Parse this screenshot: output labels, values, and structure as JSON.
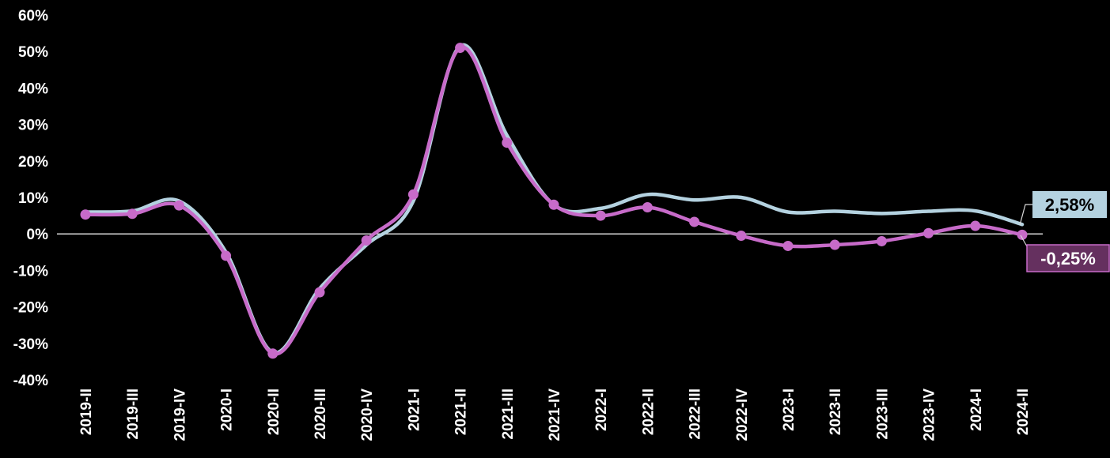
{
  "chart_data": {
    "type": "line",
    "categories": [
      "2019-II",
      "2019-III",
      "2019-IV",
      "2020-I",
      "2020-II",
      "2020-III",
      "2020-IV",
      "2021-I",
      "2021-II",
      "2021-III",
      "2021-IV",
      "2022-I",
      "2022-II",
      "2022-III",
      "2022-IV",
      "2023-I",
      "2023-II",
      "2023-III",
      "2023-IV",
      "2024-I",
      "2024-II"
    ],
    "series": [
      {
        "color": "#b4d2e0",
        "values": [
          6.0,
          6.3,
          9.0,
          -5.0,
          -32.5,
          -15.0,
          -3.0,
          9.0,
          51.5,
          27.0,
          8.0,
          7.0,
          10.8,
          9.3,
          10.0,
          6.0,
          6.2,
          5.6,
          6.2,
          6.3,
          2.58
        ],
        "end_label": "2,58%",
        "label_bg": "#b4d2e0",
        "label_color": "#000000",
        "markers": false
      },
      {
        "color": "#c76bc9",
        "values": [
          5.3,
          5.5,
          7.8,
          -6.0,
          -32.8,
          -16.0,
          -1.8,
          10.8,
          51.0,
          25.0,
          8.0,
          5.0,
          7.3,
          3.3,
          -0.5,
          -3.3,
          -3.0,
          -2.0,
          0.2,
          2.2,
          -0.25
        ],
        "end_label": "-0,25%",
        "label_bg": "#65305f",
        "label_color": "#ffffff",
        "markers": true
      }
    ],
    "y_ticks": [
      "60%",
      "50%",
      "40%",
      "30%",
      "20%",
      "10%",
      "0%",
      "-10%",
      "-20%",
      "-30%",
      "-40%"
    ],
    "ylim": [
      -40,
      60
    ],
    "zero_line": true,
    "grid": false,
    "legend": "none",
    "background": "#000000",
    "text_color": "#ffffff"
  }
}
